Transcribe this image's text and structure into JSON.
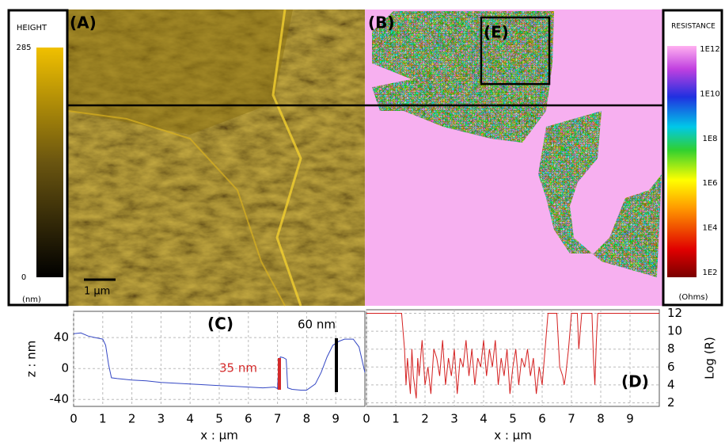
{
  "panels": {
    "a": "(A)",
    "b": "(B)",
    "e": "(E)",
    "scale_bar": "1 µm"
  },
  "height_scale": {
    "title": "HEIGHT",
    "ticks": [
      0,
      285
    ],
    "unit": "(nm)"
  },
  "resistance_scale": {
    "title": "RESISTANCE",
    "ticks": [
      {
        "value": 2,
        "label": "1E2"
      },
      {
        "value": 4,
        "label": "1E4"
      },
      {
        "value": 6,
        "label": "1E6"
      },
      {
        "value": 8,
        "label": "1E8"
      },
      {
        "value": 10,
        "label": "1E10"
      },
      {
        "value": 12,
        "label": "1E12"
      }
    ],
    "unit": "(Ohms)"
  },
  "chart_data": [
    {
      "type": "line",
      "label": "(C)",
      "x_label": "x : µm",
      "y_label": "z : nm",
      "y_side": "left",
      "color": "#3447c4",
      "x": [
        0,
        0.25,
        0.5,
        0.75,
        1.0,
        1.1,
        1.2,
        1.3,
        1.5,
        2,
        2.5,
        3,
        3.5,
        4,
        4.5,
        5,
        5.5,
        6,
        6.5,
        6.9,
        7.0,
        7.05,
        7.1,
        7.2,
        7.3,
        7.35,
        7.5,
        7.8,
        8.0,
        8.3,
        8.5,
        8.7,
        8.9,
        9.1,
        9.3,
        9.6,
        9.8,
        10
      ],
      "values": [
        45,
        46,
        42,
        40,
        38,
        30,
        5,
        -12,
        -13,
        -15,
        -16,
        -18,
        -19,
        -20,
        -21,
        -22,
        -23,
        -24,
        -25,
        -24,
        -26,
        10,
        15,
        14,
        12,
        -25,
        -27,
        -28,
        -28,
        -20,
        -5,
        15,
        30,
        35,
        38,
        38,
        28,
        -5
      ],
      "xlim": [
        0,
        10
      ],
      "ylim": [
        -49,
        74
      ],
      "xticks": [
        0,
        1,
        2,
        3,
        4,
        5,
        6,
        7,
        8,
        9
      ],
      "yticks": [
        -40,
        0,
        40
      ],
      "grid": true,
      "annotations": [
        {
          "text": "60 nm",
          "color": "#000000"
        },
        {
          "text": "35 nm",
          "color": "#d42a2a"
        }
      ]
    },
    {
      "type": "line",
      "label": "(D)",
      "x_label": "x : µm",
      "y_label": "Log (R)",
      "y_side": "right",
      "color": "#d42020",
      "x": [
        0,
        1.2,
        1.3,
        1.35,
        1.4,
        1.5,
        1.55,
        1.6,
        1.7,
        1.75,
        1.8,
        1.9,
        2.0,
        2.1,
        2.2,
        2.3,
        2.4,
        2.5,
        2.6,
        2.7,
        2.8,
        2.9,
        3.0,
        3.1,
        3.2,
        3.3,
        3.4,
        3.5,
        3.6,
        3.7,
        3.8,
        3.9,
        4.0,
        4.1,
        4.2,
        4.3,
        4.4,
        4.5,
        4.6,
        4.7,
        4.8,
        4.9,
        5.0,
        5.1,
        5.2,
        5.3,
        5.4,
        5.5,
        5.6,
        5.7,
        5.8,
        5.9,
        6.0,
        6.1,
        6.2,
        6.5,
        6.6,
        6.7,
        6.75,
        6.8,
        6.9,
        7.0,
        7.2,
        7.25,
        7.3,
        7.35,
        7.4,
        7.7,
        7.75,
        7.8,
        7.85,
        7.9,
        8.0,
        10
      ],
      "values": [
        12,
        12,
        8,
        4,
        7,
        3,
        8,
        5,
        2.5,
        7,
        5,
        9,
        4,
        6,
        3,
        8,
        7,
        5,
        9,
        4,
        7,
        5,
        8,
        3,
        7,
        6,
        9,
        5,
        8,
        4,
        7,
        6,
        9,
        5,
        8,
        6,
        9,
        4,
        7,
        5,
        8,
        3,
        6,
        8,
        4,
        7,
        6,
        8,
        5,
        7,
        3,
        6,
        4,
        8,
        12,
        12,
        6,
        5,
        4,
        5,
        8,
        12,
        12,
        8,
        10,
        12,
        12,
        12,
        7,
        4,
        9,
        12,
        12,
        12
      ],
      "xlim": [
        0,
        10
      ],
      "ylim": [
        1.6,
        12.4
      ],
      "xticks": [
        0,
        1,
        2,
        3,
        4,
        5,
        6,
        7,
        8,
        9
      ],
      "yticks": [
        2,
        4,
        6,
        8,
        10,
        12
      ],
      "grid": true
    }
  ]
}
